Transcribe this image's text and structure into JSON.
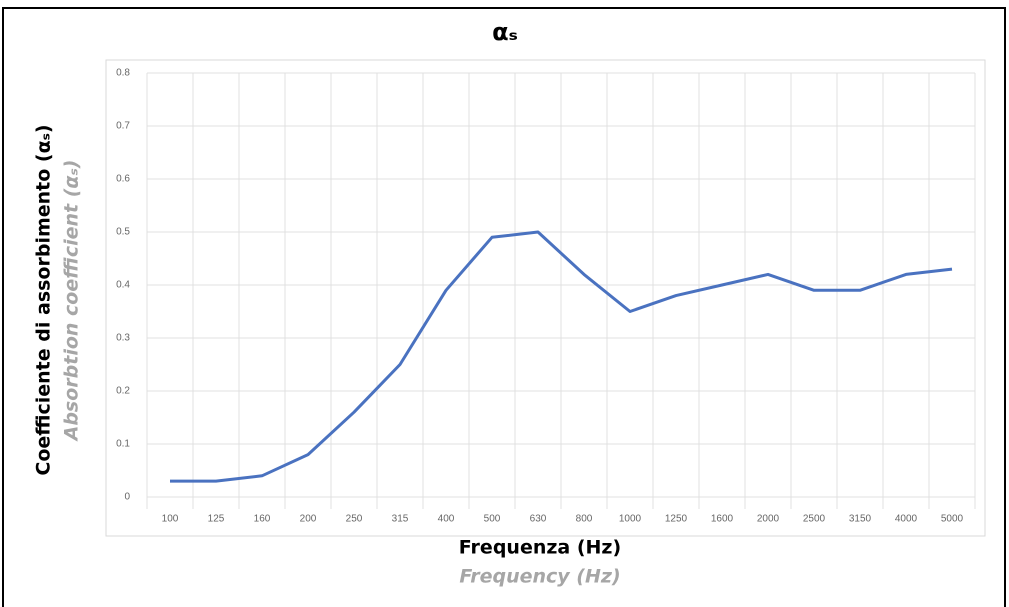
{
  "chart_data": {
    "type": "line",
    "title": "αₛ",
    "y_label": "Coefficiente di assorbimento (αₛ)",
    "y_label_en": "Absorbtion coefficient (αₛ)",
    "x_label": "Frequenza (Hz)",
    "x_label_en": "Frequency (Hz)",
    "categories": [
      "100",
      "125",
      "160",
      "200",
      "250",
      "315",
      "400",
      "500",
      "630",
      "800",
      "1000",
      "1250",
      "1600",
      "2000",
      "2500",
      "3150",
      "4000",
      "5000"
    ],
    "values": [
      0.03,
      0.03,
      0.04,
      0.08,
      0.16,
      0.25,
      0.39,
      0.49,
      0.5,
      0.42,
      0.35,
      0.38,
      0.4,
      0.42,
      0.39,
      0.39,
      0.42,
      0.43
    ],
    "color": "#4a72c0",
    "ylim": [
      0,
      0.8
    ],
    "yticks": [
      0,
      0.1,
      0.2,
      0.3,
      0.4,
      0.5,
      0.6,
      0.7,
      0.8
    ],
    "grid": true
  }
}
